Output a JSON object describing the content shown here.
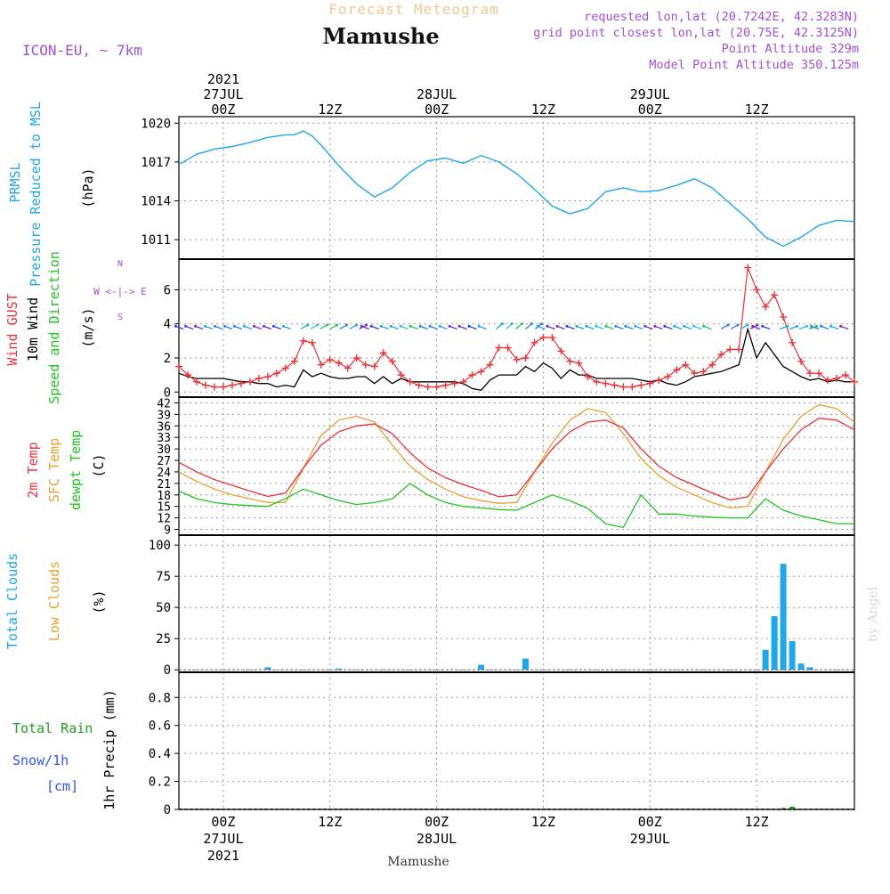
{
  "header": {
    "product": "Forecast Meteogram",
    "model": "ICON-EU, ~ 7km",
    "station": "Mamushe",
    "requested": "requested lon,lat (20.7242E, 42.3283N)",
    "grid_point": "grid point closest lon,lat (20.75E, 42.3125N)",
    "point_altitude": "Point Altitude 329m",
    "model_altitude": "Model Point Altitude 350.125m",
    "footer_station": "Mamushe",
    "credit": "by Angel"
  },
  "time_axis": {
    "top_labels": [
      {
        "h": 0,
        "lines": [
          "2021",
          "27JUL",
          "00Z"
        ]
      },
      {
        "h": 12,
        "lines": [
          "12Z"
        ]
      },
      {
        "h": 24,
        "lines": [
          "28JUL",
          "00Z"
        ]
      },
      {
        "h": 36,
        "lines": [
          "12Z"
        ]
      },
      {
        "h": 48,
        "lines": [
          "29JUL",
          "00Z"
        ]
      },
      {
        "h": 60,
        "lines": [
          "12Z"
        ]
      }
    ],
    "bottom_labels": [
      {
        "h": 0,
        "lines": [
          "00Z",
          "27JUL",
          "2021"
        ]
      },
      {
        "h": 12,
        "lines": [
          "12Z"
        ]
      },
      {
        "h": 24,
        "lines": [
          "00Z",
          "28JUL"
        ]
      },
      {
        "h": 36,
        "lines": [
          "12Z"
        ]
      },
      {
        "h": 48,
        "lines": [
          "00Z",
          "29JUL"
        ]
      },
      {
        "h": 60,
        "lines": [
          "12Z"
        ]
      }
    ]
  },
  "colors": {
    "pressure": "#1fa7e8",
    "gust": "#e8333a",
    "wind": "#000000",
    "temp2m": "#e8333a",
    "sfc": "#e8a030",
    "dewpt": "#22c422",
    "cloud_total": "#1fa7e8",
    "cloud_low": "#e8a030",
    "rain": "#22a022",
    "snow": "#3355ee",
    "meta": "#a050d0",
    "title_orange": "#f0c890",
    "grid": "#9a9a9a"
  },
  "chart_data": [
    {
      "id": "pressure",
      "type": "line",
      "title": "PRMSL Pressure Reduced to MSL",
      "ylabel_lines": [
        "PRMSL",
        "Pressure Reduced to MSL"
      ],
      "unit": "(hPa)",
      "ylim": [
        1009.5,
        1020.5
      ],
      "yticks": [
        1011,
        1014,
        1017,
        1020
      ],
      "xlim": [
        -5,
        71
      ],
      "series": [
        {
          "name": "PRMSL",
          "x": [
            -5,
            -3,
            -1,
            1,
            3,
            5,
            7,
            8,
            9,
            10,
            11,
            13,
            15,
            17,
            19,
            21,
            23,
            25,
            27,
            29,
            31,
            33,
            35,
            37,
            39,
            41,
            43,
            45,
            47,
            49,
            51,
            53,
            55,
            57,
            59,
            61,
            63,
            65,
            67,
            69,
            71
          ],
          "y": [
            1016.8,
            1017.6,
            1018.0,
            1018.2,
            1018.5,
            1018.9,
            1019.1,
            1019.1,
            1019.4,
            1019.0,
            1018.3,
            1016.7,
            1015.3,
            1014.3,
            1015.0,
            1016.2,
            1017.1,
            1017.3,
            1016.9,
            1017.5,
            1017.0,
            1016.1,
            1014.9,
            1013.6,
            1013.0,
            1013.4,
            1014.7,
            1015.0,
            1014.7,
            1014.8,
            1015.2,
            1015.7,
            1015.0,
            1013.8,
            1012.6,
            1011.2,
            1010.5,
            1011.2,
            1012.1,
            1012.5,
            1012.4
          ]
        }
      ]
    },
    {
      "id": "wind",
      "type": "line",
      "title": "Wind GUST / 10m Wind Speed and Direction",
      "ylabel_lines": [
        "Wind GUST",
        "10m Wind",
        "Speed and Direction"
      ],
      "unit": "(m/s)",
      "compass": "N, W <-|-> E, S",
      "ylim": [
        -0.3,
        7.8
      ],
      "yticks": [
        0,
        2,
        4,
        6
      ],
      "xlim": [
        -5,
        71
      ],
      "series": [
        {
          "name": "Wind GUST",
          "x": [
            -5,
            -4,
            -3,
            -2,
            -1,
            0,
            1,
            2,
            3,
            4,
            5,
            6,
            7,
            8,
            9,
            10,
            11,
            12,
            13,
            14,
            15,
            16,
            17,
            18,
            19,
            20,
            21,
            22,
            23,
            24,
            25,
            26,
            27,
            28,
            29,
            30,
            31,
            32,
            33,
            34,
            35,
            36,
            37,
            38,
            39,
            40,
            41,
            42,
            43,
            44,
            45,
            46,
            47,
            48,
            49,
            50,
            51,
            52,
            53,
            54,
            55,
            56,
            57,
            58,
            59,
            60,
            61,
            62,
            63,
            64,
            65,
            66,
            67,
            68,
            69,
            70,
            71
          ],
          "y": [
            1.5,
            1.0,
            0.6,
            0.4,
            0.3,
            0.3,
            0.4,
            0.5,
            0.6,
            0.8,
            0.9,
            1.1,
            1.4,
            1.8,
            3.0,
            2.9,
            1.6,
            1.9,
            1.7,
            1.4,
            2.0,
            1.6,
            1.5,
            2.3,
            1.8,
            1.0,
            0.6,
            0.4,
            0.3,
            0.3,
            0.4,
            0.5,
            0.6,
            1.0,
            1.2,
            1.6,
            2.6,
            2.6,
            1.9,
            2.0,
            2.9,
            3.2,
            3.2,
            2.4,
            1.8,
            1.7,
            0.9,
            0.6,
            0.5,
            0.4,
            0.3,
            0.3,
            0.4,
            0.5,
            0.7,
            0.9,
            1.3,
            1.6,
            1.1,
            1.2,
            1.6,
            2.2,
            2.5,
            2.5,
            7.3,
            6.0,
            5.0,
            5.7,
            4.4,
            2.9,
            1.8,
            1.1,
            1.1,
            0.7,
            0.8,
            1.0,
            0.6
          ]
        },
        {
          "name": "10m Wind",
          "x": [
            -5,
            -4,
            -3,
            -2,
            -1,
            0,
            1,
            2,
            3,
            4,
            5,
            6,
            7,
            8,
            9,
            10,
            11,
            12,
            13,
            14,
            15,
            16,
            17,
            18,
            19,
            20,
            21,
            22,
            23,
            24,
            25,
            26,
            27,
            28,
            29,
            30,
            31,
            32,
            33,
            34,
            35,
            36,
            37,
            38,
            39,
            40,
            41,
            42,
            43,
            44,
            45,
            46,
            47,
            48,
            49,
            50,
            51,
            52,
            53,
            54,
            55,
            56,
            57,
            58,
            59,
            60,
            61,
            62,
            63,
            64,
            65,
            66,
            67,
            68,
            69,
            70,
            71
          ],
          "y": [
            1.1,
            0.9,
            0.8,
            0.8,
            0.8,
            0.8,
            0.7,
            0.6,
            0.6,
            0.5,
            0.5,
            0.3,
            0.4,
            0.3,
            1.3,
            0.9,
            1.1,
            0.9,
            0.8,
            0.8,
            0.9,
            0.9,
            0.5,
            0.9,
            0.5,
            0.8,
            0.6,
            0.6,
            0.6,
            0.6,
            0.6,
            0.6,
            0.5,
            0.2,
            0.1,
            0.7,
            1.0,
            1.0,
            1.0,
            1.5,
            1.2,
            1.7,
            1.4,
            0.8,
            1.3,
            1.0,
            1.0,
            0.8,
            0.8,
            0.8,
            0.8,
            0.8,
            0.7,
            0.6,
            0.7,
            0.5,
            0.4,
            0.6,
            0.9,
            1.0,
            1.1,
            1.2,
            1.4,
            1.6,
            3.7,
            2.0,
            2.9,
            2.2,
            1.5,
            1.2,
            0.9,
            0.7,
            0.8,
            0.6,
            0.7,
            0.6,
            0.6
          ]
        }
      ]
    },
    {
      "id": "temperature",
      "type": "line",
      "title": "2m Temp / SFC Temp / dewpt Temp",
      "ylabel_lines": [
        "2m Temp",
        "SFC Temp",
        "dewpt Temp"
      ],
      "unit": "(C)",
      "ylim": [
        7.5,
        43.5
      ],
      "yticks": [
        9,
        12,
        15,
        18,
        21,
        24,
        27,
        30,
        33,
        36,
        39,
        42
      ],
      "xlim": [
        -5,
        71
      ],
      "series": [
        {
          "name": "2m Temp",
          "x": [
            -5,
            -3,
            -1,
            1,
            3,
            5,
            7,
            9,
            11,
            13,
            15,
            17,
            19,
            21,
            23,
            25,
            27,
            29,
            31,
            33,
            35,
            37,
            39,
            41,
            43,
            45,
            47,
            49,
            51,
            53,
            55,
            57,
            59,
            61,
            63,
            65,
            67,
            69,
            71
          ],
          "y": [
            26.5,
            24.0,
            22.0,
            20.5,
            19.0,
            17.6,
            18.5,
            25.0,
            31.0,
            34.5,
            36.0,
            36.5,
            34.0,
            29.0,
            25.0,
            22.5,
            20.7,
            19.2,
            17.5,
            18.0,
            24.0,
            30.0,
            34.5,
            37.0,
            37.5,
            35.5,
            30.0,
            25.5,
            22.5,
            20.5,
            18.5,
            16.7,
            17.5,
            24.0,
            30.0,
            35.0,
            38.0,
            37.5,
            35.0
          ]
        },
        {
          "name": "SFC Temp",
          "x": [
            -5,
            -3,
            -1,
            1,
            3,
            5,
            7,
            9,
            11,
            13,
            15,
            17,
            19,
            21,
            23,
            25,
            27,
            29,
            31,
            33,
            35,
            37,
            39,
            41,
            43,
            45,
            47,
            49,
            51,
            53,
            55,
            57,
            59,
            61,
            63,
            65,
            67,
            69,
            71
          ],
          "y": [
            24.0,
            21.5,
            19.5,
            18.0,
            17.0,
            16.0,
            16.0,
            25.0,
            33.5,
            37.5,
            38.5,
            37.0,
            31.0,
            25.5,
            22.0,
            19.5,
            17.5,
            16.5,
            15.8,
            16.0,
            24.0,
            31.5,
            37.5,
            40.5,
            39.5,
            34.0,
            27.5,
            23.0,
            20.0,
            18.0,
            16.0,
            14.6,
            15.0,
            24.0,
            32.5,
            38.5,
            41.5,
            40.5,
            37.0
          ]
        },
        {
          "name": "dewpt Temp",
          "x": [
            -5,
            -3,
            -1,
            1,
            3,
            5,
            7,
            9,
            11,
            13,
            15,
            17,
            19,
            21,
            23,
            25,
            27,
            29,
            31,
            33,
            35,
            37,
            39,
            41,
            43,
            45,
            47,
            49,
            51,
            53,
            55,
            57,
            59,
            61,
            63,
            65,
            67,
            69,
            71
          ],
          "y": [
            19.0,
            17.0,
            16.0,
            15.5,
            15.2,
            15.0,
            17.0,
            19.5,
            18.0,
            16.5,
            15.5,
            16.0,
            17.0,
            21.0,
            18.0,
            16.0,
            15.0,
            14.6,
            14.2,
            14.0,
            16.0,
            18.0,
            16.5,
            14.5,
            10.5,
            9.5,
            18.0,
            13.0,
            13.0,
            12.5,
            12.2,
            12.0,
            12.0,
            17.0,
            14.0,
            12.5,
            11.5,
            10.5,
            10.5
          ]
        }
      ]
    },
    {
      "id": "clouds",
      "type": "bar",
      "title": "Total Clouds / Low Clouds",
      "ylabel_lines": [
        "Total Clouds",
        "Low Clouds"
      ],
      "unit": "(%)",
      "ylim": [
        -2,
        108
      ],
      "yticks": [
        0,
        25,
        50,
        75,
        100
      ],
      "xlim": [
        -5,
        71
      ],
      "series": [
        {
          "name": "Total Clouds",
          "x": [
            5,
            13,
            29,
            34,
            61,
            62,
            63,
            64,
            65,
            66
          ],
          "y": [
            2,
            1,
            4,
            9,
            16,
            43,
            85,
            23,
            5,
            2
          ]
        }
      ]
    },
    {
      "id": "precip",
      "type": "bar",
      "title": "Total Rain / Snow/1h [cm]",
      "ylabel_lines": [
        "1hr Precip (mm)"
      ],
      "left_legend": [
        "Total  Rain",
        "Snow/1h",
        "[cm]"
      ],
      "unit": "(mm)",
      "ylim": [
        0,
        0.98
      ],
      "yticks": [
        0,
        0.2,
        0.4,
        0.6,
        0.8
      ],
      "xlim": [
        -5,
        71
      ],
      "series": [
        {
          "name": "Total Rain",
          "x": [
            63,
            64
          ],
          "y": [
            0.01,
            0.02
          ]
        }
      ]
    }
  ]
}
